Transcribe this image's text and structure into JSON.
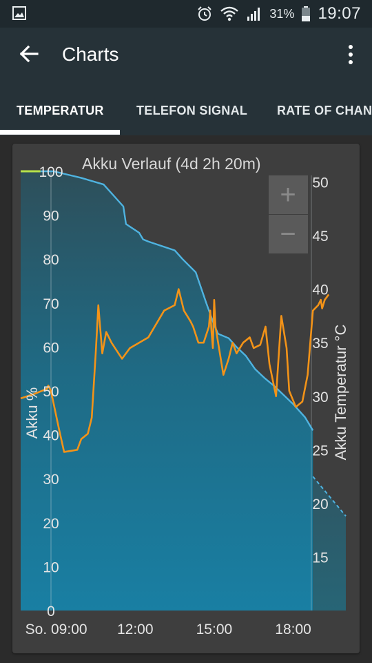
{
  "status_bar": {
    "icons": [
      "gallery-icon",
      "alarm-icon",
      "wifi-icon",
      "signal-icon",
      "battery-icon"
    ],
    "battery_percent": "31%",
    "time": "19:07"
  },
  "app_bar": {
    "title": "Charts",
    "back_icon": "arrow-left-icon",
    "menu_icon": "more-vert-icon"
  },
  "tabs": [
    {
      "label": "TEMPERATUR",
      "selected": true
    },
    {
      "label": "TELEFON SIGNAL",
      "selected": false
    },
    {
      "label": "RATE OF CHANG",
      "selected": false
    }
  ],
  "zoom": {
    "in_label": "+",
    "out_label": "−"
  },
  "colors": {
    "battery_line": "#4fb3e0",
    "battery_fill": "#1b7899",
    "temperature_line": "#f39318",
    "full_charge_marker": "#b6e34a",
    "card": "#3e3e3e"
  },
  "chart_data": {
    "type": "line",
    "title": "Akku Verlauf (4d 2h 20m)",
    "ylabel": "Akku %",
    "y2label": "Akku Temperatur °C",
    "x_ticks": [
      "So. 09:00",
      "12:00",
      "15:00",
      "18:00"
    ],
    "y_ticks": [
      "0",
      "10",
      "20",
      "30",
      "40",
      "50",
      "60",
      "70",
      "80",
      "90",
      "100"
    ],
    "y2_ticks": [
      "15",
      "20",
      "25",
      "30",
      "35",
      "40",
      "45",
      "50"
    ],
    "ylim": [
      0,
      100
    ],
    "y2lim": [
      10,
      51
    ],
    "xlim": [
      7.65,
      20.0
    ],
    "series": [
      {
        "name": "Akku %",
        "axis": "left",
        "x": [
          7.65,
          8.4,
          8.9,
          9.6,
          9.95,
          10.8,
          11.55,
          11.65,
          12.15,
          12.3,
          12.5,
          13.5,
          13.8,
          14.3,
          14.7,
          15.0,
          15.15,
          15.55,
          15.85,
          16.2,
          16.55,
          16.9,
          17.3,
          17.65,
          18.0,
          18.3,
          18.45,
          18.75
        ],
        "values": [
          100,
          100,
          100,
          99,
          98.5,
          97,
          92,
          88,
          86,
          84.5,
          84,
          82,
          80,
          77,
          70,
          65,
          63,
          62,
          60,
          58,
          55,
          53,
          51,
          49,
          47,
          45,
          44,
          41
        ],
        "projection": {
          "x": [
            18.75,
            20.0
          ],
          "values": [
            30.5,
            21.5
          ]
        }
      },
      {
        "name": "Akku Temperatur °C",
        "axis": "right",
        "x": [
          7.65,
          8.15,
          8.65,
          8.7,
          8.8,
          9.1,
          9.3,
          9.8,
          9.95,
          10.2,
          10.35,
          10.5,
          10.6,
          10.75,
          10.9,
          11.1,
          11.5,
          11.8,
          12.5,
          13.1,
          13.5,
          13.65,
          13.85,
          14.1,
          14.2,
          14.4,
          14.6,
          14.8,
          14.85,
          14.9,
          14.95,
          15.0,
          15.05,
          15.35,
          15.55,
          15.7,
          15.85,
          16.1,
          16.35,
          16.5,
          16.75,
          16.95,
          17.1,
          17.35,
          17.55,
          17.75,
          17.85,
          18.1,
          18.35,
          18.55,
          18.75,
          18.95,
          19.05,
          19.1,
          19.2,
          19.35
        ],
        "values": [
          29.8,
          30.2,
          30.7,
          31.0,
          30.5,
          27.0,
          24.8,
          25.0,
          26.0,
          26.5,
          28.0,
          34.0,
          38.5,
          34.0,
          36.0,
          35.0,
          33.5,
          34.5,
          35.5,
          38.0,
          38.5,
          40.0,
          38.0,
          37.0,
          36.5,
          35.0,
          35.0,
          36.5,
          38.0,
          36.0,
          34.5,
          39.0,
          36.5,
          32.0,
          33.5,
          35.0,
          34.0,
          35.0,
          35.5,
          34.5,
          34.8,
          36.5,
          33.0,
          30.0,
          37.5,
          34.5,
          30.5,
          29.0,
          29.5,
          32.0,
          38.0,
          38.5,
          39.0,
          38.2,
          39.0,
          39.5
        ]
      }
    ],
    "full_charge_marker": {
      "x": [
        7.65,
        8.4
      ],
      "value": 100
    },
    "grid": false,
    "legend": "none"
  }
}
